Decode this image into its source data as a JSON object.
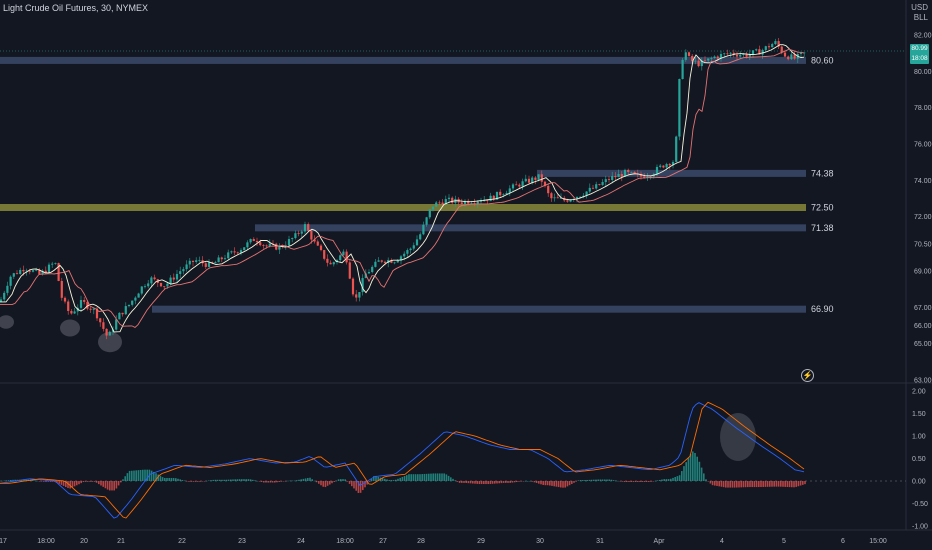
{
  "header": {
    "title": "Light Crude Oil Futures, 30, NYMEX",
    "currency": "USD",
    "unit": "BLL"
  },
  "last_price": {
    "value": "80.99",
    "countdown": "18:08"
  },
  "bolt_glyph": "⚡",
  "colors": {
    "background": "#131722",
    "up": "#26a69a",
    "down": "#ef5350",
    "level_zone": "#3b4a6b",
    "level_yellow": "#8a8a3a",
    "macd_line": "#2962ff",
    "signal_line": "#ff6d00",
    "ema_fast": "#f5f5dc",
    "ema_slow": "#e57373"
  },
  "chart_data": {
    "type": "candlestick",
    "price_axis": {
      "ylim": [
        63.0,
        83.0
      ],
      "ticks": [
        "82.00",
        "80.00",
        "78.00",
        "76.00",
        "74.00",
        "72.00",
        "70.50",
        "69.00",
        "67.00",
        "66.00",
        "65.00",
        "63.00"
      ]
    },
    "macd_axis": {
      "ylim": [
        -1.2,
        2.0
      ],
      "ticks": [
        "2.00",
        "1.50",
        "1.00",
        "0.50",
        "0.00",
        "-0.50",
        "-1.00"
      ]
    },
    "x_ticks": [
      "17",
      "18:00",
      "20",
      "21",
      "22",
      "23",
      "24",
      "18:00",
      "27",
      "28",
      "29",
      "30",
      "31",
      "Apr",
      "4",
      "5",
      "6",
      "15:00"
    ],
    "levels": [
      {
        "label": "80.60",
        "value": 80.6,
        "color": "blue"
      },
      {
        "label": "74.38",
        "value": 74.38,
        "color": "blue"
      },
      {
        "label": "72.50",
        "value": 72.5,
        "color": "yellow"
      },
      {
        "label": "71.38",
        "value": 71.38,
        "color": "blue"
      },
      {
        "label": "66.90",
        "value": 66.9,
        "color": "blue"
      }
    ],
    "price_path": [
      [
        0,
        67.3
      ],
      [
        10,
        68.7
      ],
      [
        25,
        69.2
      ],
      [
        40,
        68.8
      ],
      [
        55,
        69.5
      ],
      [
        62,
        67.5
      ],
      [
        70,
        66.6
      ],
      [
        82,
        67.3
      ],
      [
        95,
        66.8
      ],
      [
        108,
        65.3
      ],
      [
        118,
        66.5
      ],
      [
        130,
        67.2
      ],
      [
        140,
        68.0
      ],
      [
        150,
        68.6
      ],
      [
        165,
        68.2
      ],
      [
        180,
        69.0
      ],
      [
        195,
        69.6
      ],
      [
        210,
        69.3
      ],
      [
        225,
        69.8
      ],
      [
        240,
        70.2
      ],
      [
        255,
        70.8
      ],
      [
        265,
        70.4
      ],
      [
        280,
        70.3
      ],
      [
        295,
        70.9
      ],
      [
        305,
        71.5
      ],
      [
        315,
        70.5
      ],
      [
        330,
        69.3
      ],
      [
        345,
        70.1
      ],
      [
        355,
        67.3
      ],
      [
        365,
        68.8
      ],
      [
        380,
        69.6
      ],
      [
        395,
        69.6
      ],
      [
        410,
        70.2
      ],
      [
        420,
        71.0
      ],
      [
        432,
        72.6
      ],
      [
        445,
        72.9
      ],
      [
        460,
        72.8
      ],
      [
        475,
        72.9
      ],
      [
        490,
        73.0
      ],
      [
        505,
        73.4
      ],
      [
        520,
        73.8
      ],
      [
        540,
        74.2
      ],
      [
        550,
        73.0
      ],
      [
        565,
        72.9
      ],
      [
        580,
        73.2
      ],
      [
        595,
        73.6
      ],
      [
        610,
        74.1
      ],
      [
        625,
        74.4
      ],
      [
        640,
        74.2
      ],
      [
        652,
        74.4
      ],
      [
        665,
        74.9
      ],
      [
        675,
        75.1
      ],
      [
        680,
        80.0
      ],
      [
        684,
        81.2
      ],
      [
        690,
        80.6
      ],
      [
        700,
        80.4
      ],
      [
        715,
        80.8
      ],
      [
        730,
        81.0
      ],
      [
        745,
        80.9
      ],
      [
        760,
        81.1
      ],
      [
        775,
        81.6
      ],
      [
        785,
        80.9
      ],
      [
        795,
        80.7
      ],
      [
        805,
        81.0
      ]
    ],
    "macd_path": [
      [
        0,
        -0.05
      ],
      [
        30,
        0.05
      ],
      [
        55,
        0.0
      ],
      [
        70,
        -0.3
      ],
      [
        95,
        -0.35
      ],
      [
        115,
        -0.85
      ],
      [
        130,
        -0.45
      ],
      [
        150,
        0.15
      ],
      [
        175,
        0.35
      ],
      [
        200,
        0.3
      ],
      [
        225,
        0.38
      ],
      [
        250,
        0.5
      ],
      [
        275,
        0.4
      ],
      [
        295,
        0.42
      ],
      [
        310,
        0.55
      ],
      [
        325,
        0.3
      ],
      [
        345,
        0.4
      ],
      [
        360,
        -0.1
      ],
      [
        375,
        0.1
      ],
      [
        395,
        0.15
      ],
      [
        420,
        0.6
      ],
      [
        445,
        1.1
      ],
      [
        465,
        1.0
      ],
      [
        490,
        0.8
      ],
      [
        510,
        0.7
      ],
      [
        530,
        0.7
      ],
      [
        548,
        0.5
      ],
      [
        565,
        0.2
      ],
      [
        585,
        0.25
      ],
      [
        610,
        0.35
      ],
      [
        630,
        0.3
      ],
      [
        650,
        0.25
      ],
      [
        670,
        0.35
      ],
      [
        680,
        0.55
      ],
      [
        692,
        1.6
      ],
      [
        698,
        1.75
      ],
      [
        712,
        1.6
      ],
      [
        735,
        1.2
      ],
      [
        760,
        0.8
      ],
      [
        780,
        0.5
      ],
      [
        795,
        0.25
      ],
      [
        805,
        0.2
      ]
    ]
  }
}
